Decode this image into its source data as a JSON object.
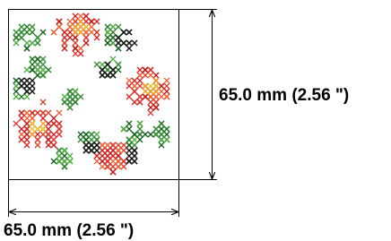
{
  "dimensions": {
    "height_label": "65.0 mm (2.56 \")",
    "width_label": "65.0 mm (2.56 \")"
  }
}
